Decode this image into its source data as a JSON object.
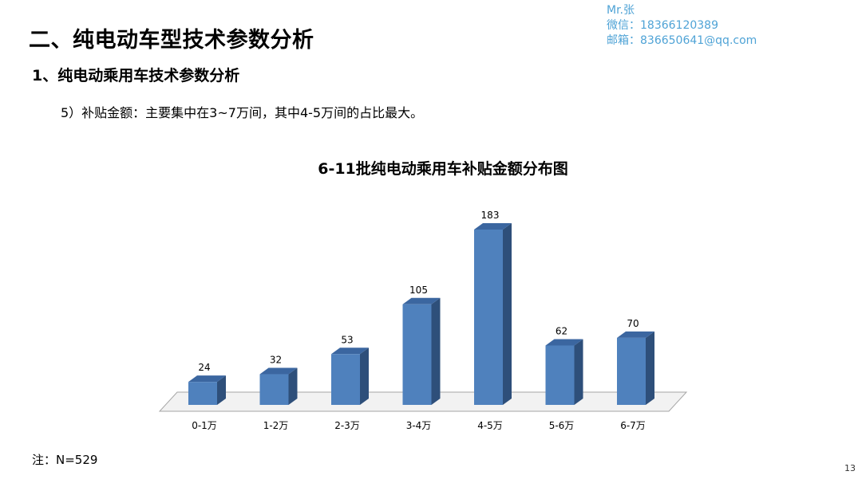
{
  "header": {
    "title": "二、纯电动车型技术参数分析",
    "subtitle": "1、纯电动乘用车技术参数分析",
    "body": "5）补贴金额：主要集中在3~7万间，其中4-5万间的占比最大。"
  },
  "contact": {
    "name": "Mr.张",
    "wechat": "微信：18366120389",
    "email": "邮箱：836650641@qq.com"
  },
  "chart_data": {
    "type": "bar",
    "title": "6-11批纯电动乘用车补贴金额分布图",
    "categories": [
      "0-1万",
      "1-2万",
      "2-3万",
      "3-4万",
      "4-5万",
      "5-6万",
      "6-7万"
    ],
    "values": [
      24,
      32,
      53,
      105,
      183,
      62,
      70
    ],
    "data_labels": [
      "24",
      "32",
      "53",
      "105",
      "183",
      "62",
      "70"
    ],
    "bar_color": "#4f81bd",
    "bar_side_color": "#2e4f7a",
    "bar_top_color": "#3b66a0",
    "grid": false,
    "legend": "none"
  },
  "note": "注：N=529",
  "page_number": "13"
}
